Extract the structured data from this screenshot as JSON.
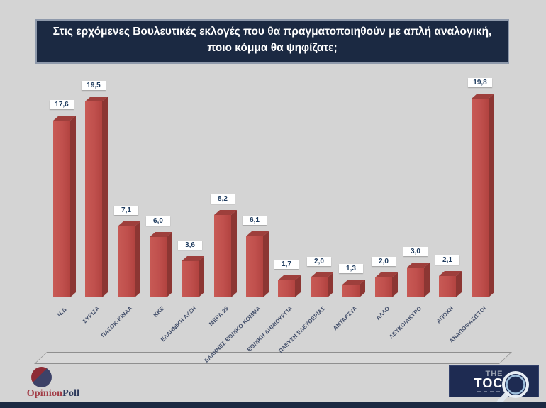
{
  "title": {
    "line1": "Στις ερχόμενες Βουλευτικές εκλογές που θα πραγματοποιηθούν με απλή αναλογική,",
    "line2": "ποιο κόμμα θα ψηφίζατε;"
  },
  "chart_data": {
    "type": "bar",
    "style": "3d-column",
    "title": "Στις ερχόμενες Βουλευτικές εκλογές που θα πραγματοποιηθούν με απλή αναλογική, ποιο κόμμα θα ψηφίζατε;",
    "categories": [
      "Ν.Δ.",
      "ΣΥΡΙΖΑ",
      "ΠΑΣΟΚ-ΚΙΝΑΛ",
      "ΚΚΕ",
      "ΕΛΛΗΝΙΚΗ ΛΥΣΗ",
      "ΜΕΡΑ 25",
      "ΕΛΛΗΝΕΣ ΕΘΝΙΚΟ ΚΟΜΜΑ",
      "ΕΘΝΙΚΗ ΔΗΜΙΟΥΡΓΙΑ",
      "ΠΛΕΥΣΗ ΕΛΕΥΘΕΡΙΑΣ",
      "ΑΝΤΑΡΣΥΑ",
      "ΑΛΛΟ",
      "ΛΕΥΚΟ/ΑΚΥΡΟ",
      "ΑΠΟΧΗ",
      "ΑΝΑΠΟΦΑΣΙΣΤΟΙ"
    ],
    "values": [
      17.6,
      19.5,
      7.1,
      6.0,
      3.6,
      8.2,
      6.1,
      1.7,
      2.0,
      1.3,
      2.0,
      3.0,
      2.1,
      19.8
    ],
    "value_labels": [
      "17,6",
      "19,5",
      "7,1",
      "6,0",
      "3,6",
      "8,2",
      "6,1",
      "1,7",
      "2,0",
      "1,3",
      "2,0",
      "3,0",
      "2,1",
      "19,8"
    ],
    "xlabel": "",
    "ylabel": "",
    "ylim": [
      0,
      20
    ],
    "grid": false,
    "legend": false,
    "label_rotation_deg": -45,
    "bar_color_front": "#c0504d",
    "bar_color_side": "#8c3633",
    "bar_color_top": "#9e3f3c"
  },
  "footer": {
    "opinionpoll": {
      "word1": "Opinion",
      "word2": "Poll"
    },
    "toc": {
      "the": "THE",
      "toc": "TOC"
    }
  },
  "colors": {
    "background": "#d4d4d4",
    "title_bg": "#1b2942",
    "title_border": "#8e99ab",
    "title_text": "#ffffff",
    "value_label_text": "#1f3c5f",
    "category_text": "#44506b",
    "bottom_strip": "#1b2942",
    "toc_bg": "#1e2b52"
  }
}
